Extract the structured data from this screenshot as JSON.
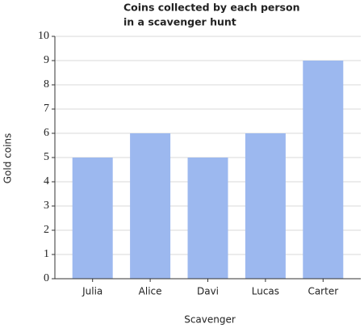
{
  "chart_data": {
    "type": "bar",
    "title": [
      "Coins collected by each person",
      "in a scavenger hunt"
    ],
    "x_label": "Scavenger",
    "y_label": "Gold coins",
    "categories": [
      "Julia",
      "Alice",
      "Davi",
      "Lucas",
      "Carter"
    ],
    "values": [
      5,
      6,
      5,
      6,
      9
    ],
    "color": "#9cb8ef",
    "ylim": [
      0,
      10
    ],
    "yticks": [
      0,
      1,
      2,
      3,
      4,
      5,
      6,
      7,
      8,
      9,
      10
    ],
    "grid": true
  }
}
